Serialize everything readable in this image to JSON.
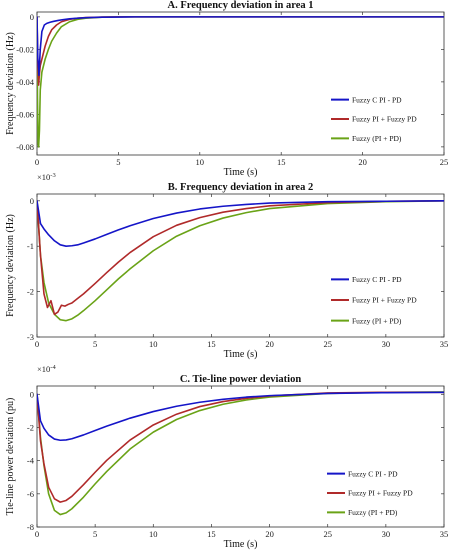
{
  "chart_data": [
    {
      "type": "line",
      "title": "A. Frequency deviation in area 1",
      "xlabel": "Time (s)",
      "ylabel": "Frequency deviation (Hz)",
      "xlim": [
        0,
        25
      ],
      "ylim": [
        -0.085,
        0.003
      ],
      "xticks": [
        0,
        5,
        10,
        15,
        20,
        25
      ],
      "yticks": [
        0,
        -0.02,
        -0.04,
        -0.06,
        -0.08
      ],
      "ytick_labels": [
        "0",
        "-0.02",
        "-0.04",
        "-0.06",
        "-0.08"
      ],
      "exponent": "",
      "legend_position": "right",
      "series": [
        {
          "name": "Fuzzy C PI - PD",
          "color": "#1515c8",
          "x": [
            0,
            0.05,
            0.12,
            0.2,
            0.3,
            0.45,
            0.6,
            0.8,
            1.0,
            1.3,
            1.6,
            2.0,
            2.5,
            3.0,
            4.0,
            5.0,
            6.0,
            8.0,
            10.0,
            15.0,
            20.0,
            25.0
          ],
          "y": [
            0,
            -0.025,
            -0.036,
            -0.02,
            -0.009,
            -0.005,
            -0.004,
            -0.0033,
            -0.0028,
            -0.0022,
            -0.0017,
            -0.0012,
            -0.0008,
            -0.0005,
            -0.0002,
            -0.0001,
            0,
            0,
            0,
            0,
            0,
            0
          ]
        },
        {
          "name": "Fuzzy PI + Fuzzy PD",
          "color": "#b02a2a",
          "x": [
            0,
            0.05,
            0.1,
            0.15,
            0.2,
            0.3,
            0.4,
            0.5,
            0.7,
            0.9,
            1.2,
            1.5,
            2.0,
            2.5,
            3.0,
            4.0,
            5.0,
            6.0,
            8.0,
            10.0,
            15.0,
            20.0,
            25.0
          ],
          "y": [
            0,
            -0.03,
            -0.042,
            -0.035,
            -0.03,
            -0.026,
            -0.022,
            -0.018,
            -0.012,
            -0.008,
            -0.005,
            -0.003,
            -0.0015,
            -0.0008,
            -0.0004,
            -0.0001,
            0,
            0,
            0,
            0,
            0,
            0,
            0
          ]
        },
        {
          "name": "Fuzzy (PI + PD)",
          "color": "#6aa317",
          "x": [
            0,
            0.03,
            0.07,
            0.1,
            0.15,
            0.2,
            0.3,
            0.4,
            0.5,
            0.7,
            0.9,
            1.2,
            1.5,
            2.0,
            2.5,
            3.0,
            4.0,
            5.0,
            6.0,
            8.0,
            10.0,
            15.0,
            20.0,
            25.0
          ],
          "y": [
            0,
            -0.05,
            -0.078,
            -0.08,
            -0.07,
            -0.045,
            -0.034,
            -0.03,
            -0.026,
            -0.02,
            -0.015,
            -0.01,
            -0.006,
            -0.003,
            -0.0015,
            -0.0008,
            -0.0002,
            0,
            0,
            0,
            0,
            0,
            0,
            0
          ]
        }
      ]
    },
    {
      "type": "line",
      "title": "B. Frequency deviation in area 2",
      "xlabel": "Time (s)",
      "ylabel": "Frequency deviation (Hz)",
      "xlim": [
        0,
        35
      ],
      "ylim": [
        -3,
        0.15
      ],
      "xticks": [
        0,
        5,
        10,
        15,
        20,
        25,
        30,
        35
      ],
      "yticks": [
        0,
        -1,
        -2,
        -3
      ],
      "ytick_labels": [
        "0",
        "-1",
        "-2",
        "-3"
      ],
      "exponent": "×10",
      "exponent_power": "-3",
      "legend_position": "right",
      "series": [
        {
          "name": "Fuzzy C PI - PD",
          "color": "#1515c8",
          "x": [
            0,
            0.3,
            0.6,
            1.0,
            1.5,
            2.0,
            2.5,
            3.0,
            3.5,
            4.0,
            5.0,
            6.0,
            7.0,
            8.0,
            10.0,
            12.0,
            14.0,
            16.0,
            18.0,
            20.0,
            25.0,
            30.0,
            35.0
          ],
          "y": [
            0,
            -0.5,
            -0.62,
            -0.75,
            -0.88,
            -0.97,
            -1.0,
            -0.99,
            -0.97,
            -0.93,
            -0.84,
            -0.74,
            -0.64,
            -0.55,
            -0.39,
            -0.27,
            -0.18,
            -0.12,
            -0.08,
            -0.05,
            -0.02,
            -0.01,
            0
          ]
        },
        {
          "name": "Fuzzy PI + Fuzzy PD",
          "color": "#b02a2a",
          "x": [
            0,
            0.3,
            0.6,
            0.9,
            1.2,
            1.5,
            1.8,
            2.1,
            2.4,
            2.7,
            3.0,
            3.5,
            4.0,
            5.0,
            6.0,
            7.0,
            8.0,
            10.0,
            12.0,
            14.0,
            16.0,
            18.0,
            20.0,
            25.0,
            30.0,
            35.0
          ],
          "y": [
            0,
            -1.2,
            -2.05,
            -2.35,
            -2.2,
            -2.5,
            -2.45,
            -2.3,
            -2.32,
            -2.28,
            -2.25,
            -2.15,
            -2.05,
            -1.82,
            -1.58,
            -1.35,
            -1.14,
            -0.79,
            -0.54,
            -0.37,
            -0.25,
            -0.17,
            -0.11,
            -0.04,
            -0.01,
            0
          ]
        },
        {
          "name": "Fuzzy (PI + PD)",
          "color": "#6aa317",
          "x": [
            0,
            0.3,
            0.6,
            1.0,
            1.5,
            2.0,
            2.5,
            3.0,
            3.5,
            4.0,
            5.0,
            6.0,
            7.0,
            8.0,
            10.0,
            12.0,
            14.0,
            16.0,
            18.0,
            20.0,
            25.0,
            30.0,
            35.0
          ],
          "y": [
            0,
            -1.2,
            -1.8,
            -2.25,
            -2.5,
            -2.62,
            -2.64,
            -2.6,
            -2.52,
            -2.42,
            -2.2,
            -1.96,
            -1.72,
            -1.5,
            -1.1,
            -0.78,
            -0.55,
            -0.38,
            -0.26,
            -0.17,
            -0.06,
            -0.02,
            0
          ]
        }
      ]
    },
    {
      "type": "line",
      "title": "C. Tie-line power deviation",
      "xlabel": "Time (s)",
      "ylabel": "Tie-line power deviation (pu)",
      "xlim": [
        0,
        35
      ],
      "ylim": [
        -8,
        0.5
      ],
      "xticks": [
        0,
        5,
        10,
        15,
        20,
        25,
        30,
        35
      ],
      "yticks": [
        0,
        -2,
        -4,
        -6,
        -8
      ],
      "ytick_labels": [
        "0",
        "-2",
        "-4",
        "-6",
        "-8"
      ],
      "exponent": "×10",
      "exponent_power": "-4",
      "legend_position": "right",
      "series": [
        {
          "name": "Fuzzy C PI - PD",
          "color": "#1515c8",
          "x": [
            0,
            0.3,
            0.6,
            1.0,
            1.5,
            2.0,
            2.5,
            3.0,
            4.0,
            5.0,
            6.0,
            8.0,
            10.0,
            12.0,
            14.0,
            16.0,
            18.0,
            20.0,
            25.0,
            30.0,
            35.0
          ],
          "y": [
            0,
            -1.6,
            -2.05,
            -2.45,
            -2.7,
            -2.77,
            -2.75,
            -2.68,
            -2.45,
            -2.18,
            -1.92,
            -1.44,
            -1.04,
            -0.72,
            -0.48,
            -0.3,
            -0.17,
            -0.08,
            0.05,
            0.1,
            0.12
          ]
        },
        {
          "name": "Fuzzy PI + Fuzzy PD",
          "color": "#b02a2a",
          "x": [
            0,
            0.3,
            0.6,
            1.0,
            1.5,
            2.0,
            2.5,
            3.0,
            4.0,
            5.0,
            6.0,
            8.0,
            10.0,
            12.0,
            14.0,
            16.0,
            18.0,
            20.0,
            25.0,
            30.0,
            35.0
          ],
          "y": [
            0,
            -2.8,
            -4.2,
            -5.6,
            -6.3,
            -6.5,
            -6.4,
            -6.15,
            -5.45,
            -4.7,
            -3.98,
            -2.76,
            -1.85,
            -1.2,
            -0.74,
            -0.44,
            -0.24,
            -0.1,
            0.08,
            0.12,
            0.12
          ]
        },
        {
          "name": "Fuzzy (PI + PD)",
          "color": "#6aa317",
          "x": [
            0,
            0.3,
            0.6,
            1.0,
            1.5,
            2.0,
            2.5,
            3.0,
            4.0,
            5.0,
            6.0,
            8.0,
            10.0,
            12.0,
            14.0,
            16.0,
            18.0,
            20.0,
            25.0,
            30.0,
            35.0
          ],
          "y": [
            0,
            -2.6,
            -4.3,
            -6.0,
            -7.0,
            -7.25,
            -7.15,
            -6.9,
            -6.2,
            -5.4,
            -4.65,
            -3.3,
            -2.28,
            -1.52,
            -0.98,
            -0.6,
            -0.34,
            -0.17,
            0.05,
            0.12,
            0.14
          ]
        }
      ]
    }
  ]
}
